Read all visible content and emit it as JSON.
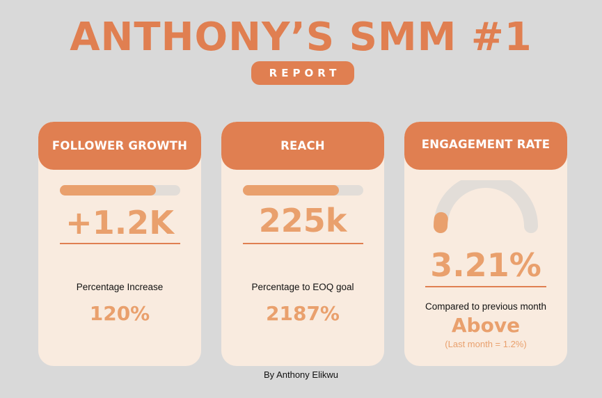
{
  "header": {
    "title": "ANTHONY’S SMM #1",
    "subtitle": "REPORT"
  },
  "cards": [
    {
      "heading": "FOLLOWER GROWTH",
      "progress_fraction": 0.8,
      "value": "+1.2K",
      "caption": "Percentage Increase",
      "percentage": "120%"
    },
    {
      "heading": "REACH",
      "progress_fraction": 0.8,
      "value": "225k",
      "caption": "Percentage to EOQ goal",
      "percentage": "2187%"
    },
    {
      "heading": "ENGAGEMENT RATE",
      "gauge_fraction": 0.05,
      "value": "3.21%",
      "caption": "Compared to previous month",
      "comparison": "Above",
      "note": "(Last month = 1.2%)"
    }
  ],
  "footer": {
    "byline": "By Anthony Elikwu"
  },
  "colors": {
    "background": "#d9d9d9",
    "accent": "#e07f51",
    "accent_light": "#e9a06d",
    "card": "#f9ebdf",
    "track": "#e2ddd8"
  }
}
